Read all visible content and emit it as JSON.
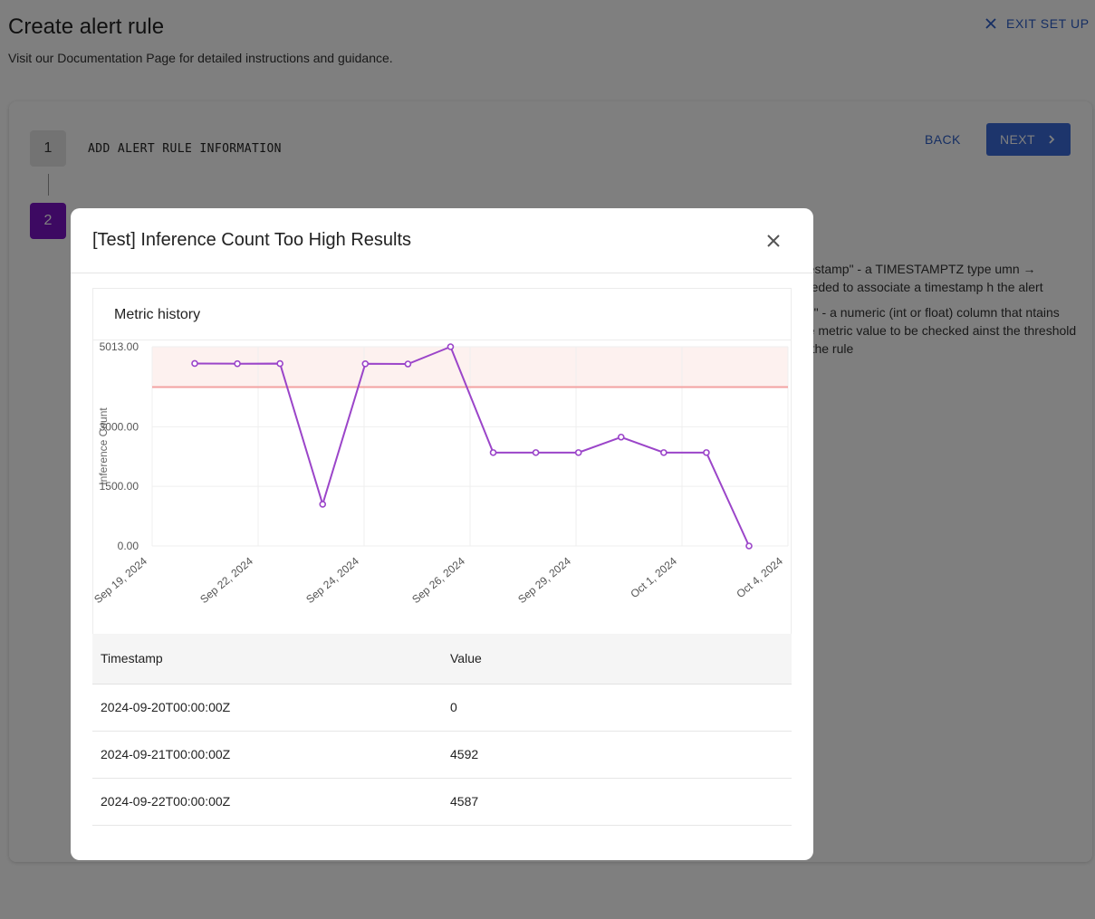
{
  "page": {
    "title": "Create alert rule",
    "subtitle": "Visit our Documentation Page for detailed instructions and guidance.",
    "exit_label": "EXIT SET UP",
    "back_label": "BACK",
    "next_label": "NEXT"
  },
  "steps": [
    {
      "number": "1",
      "label": "ADD ALERT RULE INFORMATION"
    },
    {
      "number": "2",
      "label": ""
    }
  ],
  "instructions": {
    "item1": "mestamp\" - a TIMESTAMPTZ type umn → needed to associate a timestamp h the alert",
    "item2": "lue\" - a numeric (int or float) column that ntains the metric value to be checked ainst the threshold of the rule"
  },
  "modal": {
    "title": "[Test] Inference Count Too High Results",
    "chart_heading": "Metric history",
    "table": {
      "headers": [
        "Timestamp",
        "Value"
      ],
      "rows": [
        [
          "2024-09-20T00:00:00Z",
          "0"
        ],
        [
          "2024-09-21T00:00:00Z",
          "4592"
        ],
        [
          "2024-09-22T00:00:00Z",
          "4587"
        ]
      ]
    }
  },
  "chart_data": {
    "type": "line",
    "title": "",
    "xlabel": "",
    "ylabel": "Inference Count",
    "x_tick_labels": [
      "Sep 19, 2024",
      "Sep 22, 2024",
      "Sep 24, 2024",
      "Sep 26, 2024",
      "Sep 29, 2024",
      "Oct 1, 2024",
      "Oct 4, 2024"
    ],
    "y_tick_labels": [
      "0.00",
      "1500.00",
      "3000.00",
      "5013.00"
    ],
    "ylim": [
      0,
      5013
    ],
    "threshold": 4000,
    "threshold_band": [
      4000,
      5013
    ],
    "series_color": "#9b45c9",
    "threshold_color": "#f3a2a2",
    "band_color": "#fdf1ef",
    "grid": true,
    "series": [
      {
        "values": [
          4592,
          4587,
          4590,
          1050,
          4585,
          4580,
          5013,
          2350,
          2350,
          2350,
          2740,
          2350,
          2350,
          0
        ]
      }
    ]
  }
}
